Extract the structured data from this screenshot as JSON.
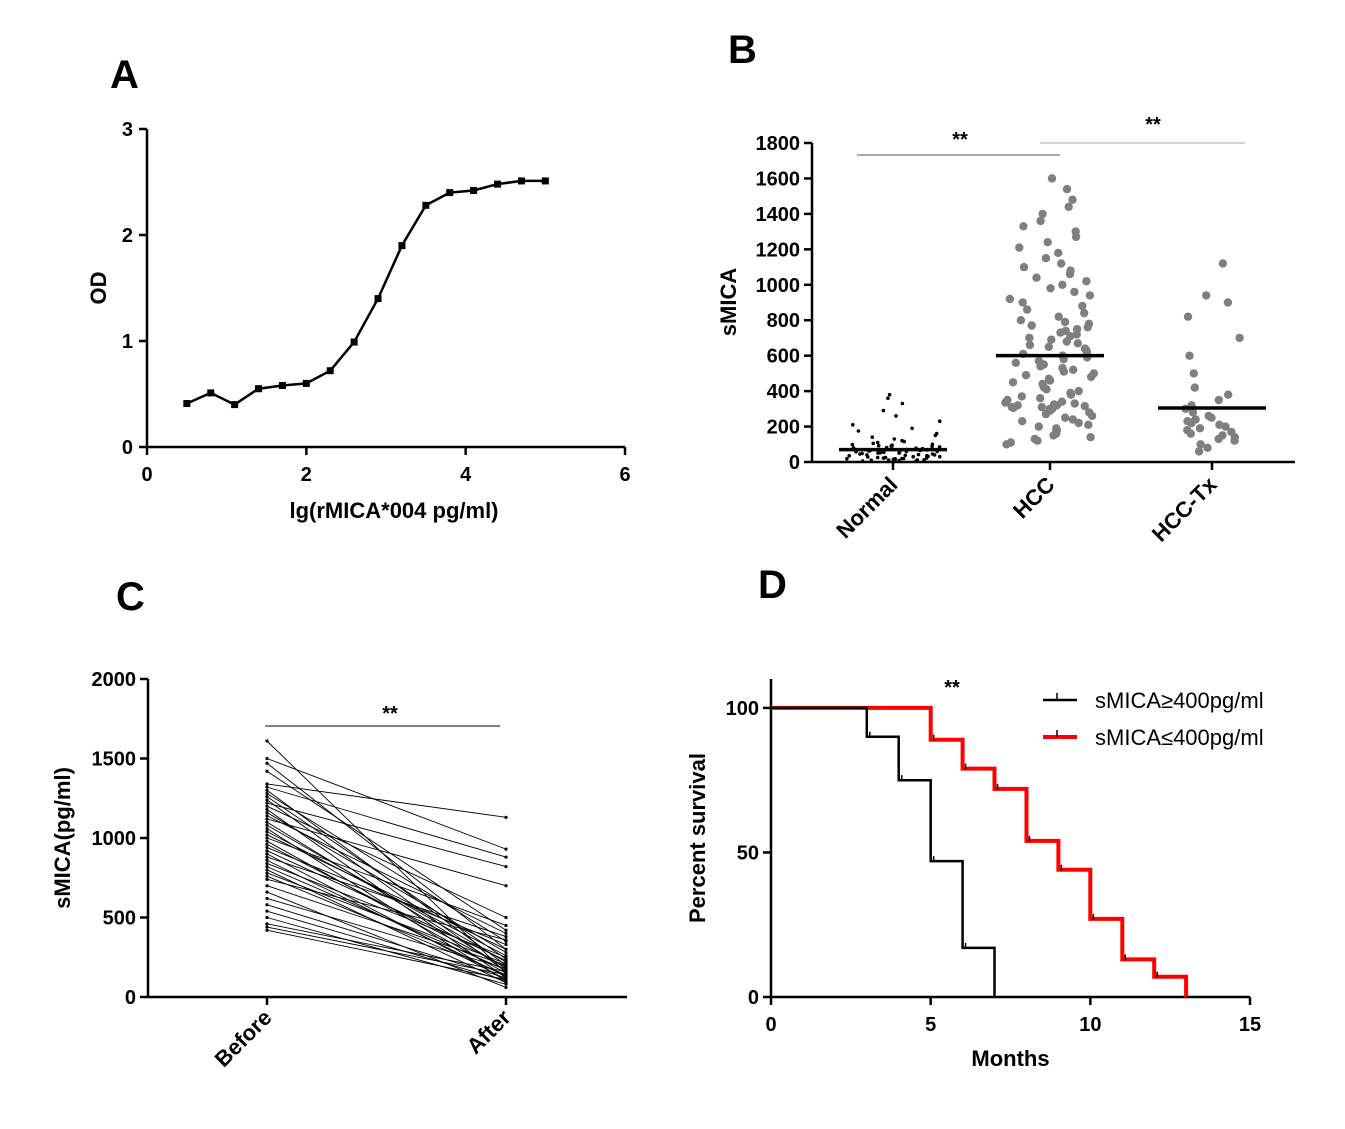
{
  "chart_data": [
    {
      "panel": "A",
      "type": "line",
      "xlabel": "lg(rMICA*004 pg/ml)",
      "ylabel": "OD",
      "xlim": [
        0,
        6
      ],
      "ylim": [
        0,
        3
      ],
      "xticks": [
        "0",
        "2",
        "4",
        "6"
      ],
      "yticks": [
        "0",
        "1",
        "2",
        "3"
      ],
      "x": [
        0.5,
        0.8,
        1.1,
        1.4,
        1.7,
        2.0,
        2.3,
        2.6,
        2.9,
        3.2,
        3.5,
        3.8,
        4.1,
        4.4,
        4.7,
        5.0
      ],
      "y": [
        0.41,
        0.51,
        0.4,
        0.55,
        0.58,
        0.6,
        0.72,
        0.99,
        1.4,
        1.9,
        2.28,
        2.4,
        2.42,
        2.48,
        2.51,
        2.51
      ],
      "color": "#000000"
    },
    {
      "panel": "B",
      "type": "scatter",
      "ylabel": "sMICA",
      "ylim": [
        0,
        1800
      ],
      "yticks": [
        "0",
        "200",
        "400",
        "600",
        "800",
        "1000",
        "1200",
        "1400",
        "1600",
        "1800"
      ],
      "categories": [
        "Normal",
        "HCC",
        "HCC-Tx"
      ],
      "means": [
        70,
        600,
        305
      ],
      "significance": [
        "**",
        "**"
      ],
      "groups": [
        {
          "name": "Normal",
          "color": "#000000",
          "values": [
            5,
            5,
            8,
            10,
            10,
            12,
            12,
            15,
            15,
            18,
            18,
            20,
            20,
            22,
            22,
            25,
            25,
            28,
            30,
            30,
            32,
            35,
            35,
            38,
            40,
            40,
            42,
            45,
            45,
            48,
            50,
            50,
            52,
            55,
            55,
            58,
            60,
            60,
            62,
            65,
            65,
            68,
            70,
            70,
            72,
            75,
            78,
            80,
            82,
            85,
            88,
            90,
            92,
            95,
            98,
            100,
            105,
            110,
            115,
            120,
            130,
            140,
            150,
            160,
            175,
            190,
            210,
            230,
            260,
            290,
            330,
            360,
            380
          ]
        },
        {
          "name": "HCC",
          "color": "#7f7f7f",
          "values": [
            100,
            110,
            120,
            130,
            140,
            150,
            160,
            170,
            180,
            190,
            200,
            210,
            220,
            230,
            240,
            250,
            260,
            270,
            280,
            290,
            300,
            300,
            305,
            310,
            310,
            315,
            320,
            320,
            325,
            330,
            335,
            340,
            350,
            360,
            370,
            380,
            390,
            400,
            410,
            420,
            430,
            440,
            450,
            460,
            470,
            480,
            490,
            500,
            510,
            520,
            530,
            540,
            550,
            560,
            570,
            580,
            590,
            600,
            610,
            620,
            630,
            640,
            650,
            660,
            670,
            680,
            690,
            700,
            710,
            720,
            730,
            740,
            750,
            760,
            770,
            780,
            790,
            800,
            820,
            840,
            860,
            880,
            900,
            920,
            940,
            960,
            980,
            1000,
            1020,
            1040,
            1060,
            1080,
            1100,
            1120,
            1150,
            1180,
            1210,
            1240,
            1270,
            1300,
            1330,
            1360,
            1400,
            1440,
            1480,
            1540,
            1600
          ]
        },
        {
          "name": "HCC-Tx",
          "color": "#7f7f7f",
          "values": [
            60,
            80,
            100,
            120,
            130,
            140,
            150,
            160,
            170,
            180,
            190,
            200,
            210,
            220,
            230,
            240,
            250,
            260,
            280,
            300,
            320,
            350,
            380,
            420,
            500,
            600,
            700,
            820,
            900,
            940,
            1120
          ]
        }
      ]
    },
    {
      "panel": "C",
      "type": "line",
      "ylabel": "sMICA(pg/ml)",
      "ylim": [
        0,
        2000
      ],
      "yticks": [
        "0",
        "500",
        "1000",
        "1500",
        "2000"
      ],
      "categories": [
        "Before",
        "After"
      ],
      "significance": "**",
      "pairs_before": [
        1610,
        1500,
        1470,
        1420,
        1340,
        1320,
        1300,
        1280,
        1260,
        1240,
        1220,
        1200,
        1180,
        1160,
        1140,
        1120,
        1100,
        1080,
        1060,
        1040,
        1020,
        1000,
        980,
        960,
        940,
        920,
        900,
        880,
        860,
        840,
        820,
        800,
        780,
        760,
        740,
        700,
        660,
        620,
        580,
        540,
        500,
        460,
        440,
        420
      ],
      "pairs_after": [
        150,
        930,
        300,
        420,
        1130,
        880,
        200,
        350,
        240,
        160,
        820,
        500,
        120,
        280,
        400,
        700,
        180,
        220,
        100,
        260,
        300,
        450,
        150,
        190,
        330,
        230,
        110,
        380,
        130,
        250,
        170,
        90,
        210,
        140,
        360,
        200,
        60,
        180,
        120,
        100,
        80,
        160,
        140,
        110
      ]
    },
    {
      "panel": "D",
      "type": "line",
      "xlabel": "Months",
      "ylabel": "Percent survival",
      "xlim": [
        0,
        15
      ],
      "ylim": [
        0,
        110
      ],
      "xticks": [
        "0",
        "5",
        "10",
        "15"
      ],
      "yticks": [
        "0",
        "50",
        "100"
      ],
      "significance": "**",
      "series": [
        {
          "name": "sMICA≥400pg/ml",
          "color": "#000000",
          "x": [
            0,
            3,
            4,
            5,
            6,
            7
          ],
          "y": [
            100,
            90,
            75,
            47,
            17,
            0
          ]
        },
        {
          "name": "sMICA≤400pg/ml",
          "color": "#ff0000",
          "x": [
            0,
            5,
            6,
            7,
            8,
            9,
            10,
            11,
            12,
            13
          ],
          "y": [
            100,
            89,
            79,
            72,
            54,
            44,
            27,
            13,
            7,
            0
          ]
        }
      ]
    }
  ]
}
